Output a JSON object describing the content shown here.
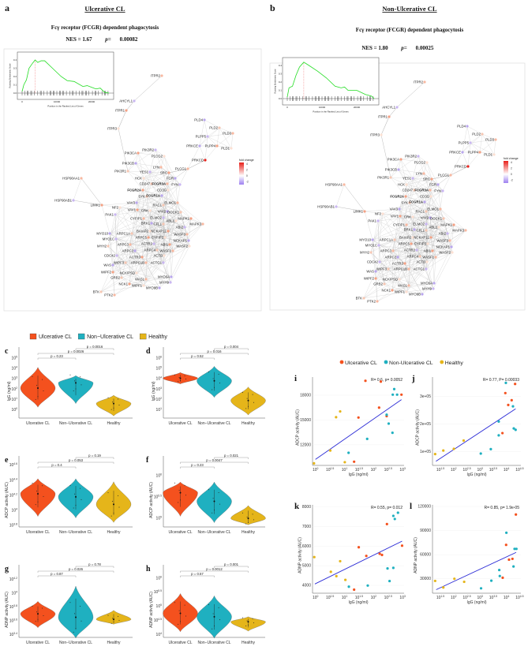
{
  "colors": {
    "ulcerative": "#f4511e",
    "non_ulcerative": "#1fb0c0",
    "healthy": "#e5b51a",
    "fit_line": "#2b2bd6",
    "gsea_curve": "#22dd22"
  },
  "panel_a": {
    "letter": "a",
    "group_title": "Ulcerative CL",
    "pathway": "Fcγ receptor (FCGR) dependent phagocytosis",
    "nes_label": "NES = 1.67",
    "p_label": "p=",
    "p_value": "0.00082"
  },
  "panel_b": {
    "letter": "b",
    "group_title": "Non-Ulcerative CL",
    "pathway": "Fcγ receptor (FCGR) dependent phagocytosis",
    "nes_label": "NES = 1.80",
    "p_label": "p=",
    "p_value": "0.00025"
  },
  "gsea_inset": {
    "ylabel": "Running Enrichment Score",
    "xlabel": "Position in the Ranked List of Genes",
    "yticks": [
      "0.0",
      "0.1",
      "0.2",
      "0.3",
      "0.4"
    ],
    "xticks": [
      "0",
      "10000",
      "20000"
    ]
  },
  "fold_change_legend": {
    "title": "fold change",
    "ticks": [
      "4",
      "2",
      "0",
      "-2"
    ]
  },
  "network_genes": [
    "ITPR2",
    "AHCYL1",
    "ITPR1",
    "ITPR3",
    "PLD4",
    "PLD2",
    "PLD3",
    "PLPP5",
    "PLPP4",
    "PLD1",
    "PRKCE",
    "PRKCD",
    "PLCG1",
    "PIK3R2",
    "PIK3CA",
    "PLCG2",
    "PIK3CB",
    "PIK3R1",
    "LYN",
    "YES1",
    "SRC",
    "HCK",
    "FGR",
    "CD247",
    "FCGR3A",
    "FYN",
    "FCGR2A",
    "CD3G",
    "FCGR1A",
    "SYK",
    "HSP90AA1",
    "HSP90AB1",
    "LIMK1",
    "NF2",
    "VAV3",
    "RAC1",
    "ELMO1",
    "PAK1",
    "VAV1",
    "CRK",
    "VAV2",
    "DOCK1",
    "CYFIP1",
    "ELMO2",
    "MAPK1",
    "ABL1",
    "BRK1",
    "CFL1",
    "MAPK3",
    "ABI2",
    "NCKAP1L",
    "BAIAP2",
    "MYO10",
    "ARPC1A",
    "WASF3",
    "MYO1C",
    "ARPC5",
    "CYFIP2",
    "NCKAP1",
    "MYH2",
    "ARPC3",
    "ACTR2",
    "ABI1",
    "WASF2",
    "ARPC2",
    "ARPC4",
    "WASF1",
    "CDC42",
    "ACTR3",
    "ACTB",
    "WAS",
    "WIPF3",
    "ARPC1B",
    "ACTG1",
    "WIPF2",
    "NCKIPSD",
    "MYO5A",
    "GRB2",
    "WASL",
    "MYH9",
    "NCK1",
    "WIPF1",
    "MYO9B",
    "BTK",
    "PTK2"
  ],
  "violin_legend": [
    "Ulcerative CL",
    "Non−Ulcerative CL",
    "Healthy"
  ],
  "scatter_legend": [
    "Ulcerative CL",
    "Non-Ulcerative CL",
    "Healthy"
  ],
  "chart_data": [
    {
      "panel": "c",
      "type": "violin",
      "ylabel": "IgG (ng/ml)",
      "yscale": "log10",
      "yticks": [
        0,
        1,
        2,
        3,
        4,
        5
      ],
      "ylim": [
        -0.8,
        5.6
      ],
      "categories": [
        "Ulcerative CL",
        "Non−Ulcerative CL",
        "Healthy"
      ],
      "groups": [
        {
          "median": 2.1,
          "min": 0.25,
          "max": 4.1
        },
        {
          "median": 2.6,
          "min": 0.6,
          "max": 3.3
        },
        {
          "median": 0.6,
          "min": -0.6,
          "max": 1.4
        }
      ],
      "comparisons": [
        {
          "pair": [
            0,
            1
          ],
          "label": "p = 0.23"
        },
        {
          "pair": [
            0,
            2
          ],
          "label": "p = 0.0026"
        },
        {
          "pair": [
            1,
            2
          ],
          "label": "p = 0.0016"
        }
      ]
    },
    {
      "panel": "d",
      "type": "violin",
      "ylabel": "IgG (ng/ml)",
      "yscale": "log10",
      "yticks": [
        1,
        2,
        3,
        4,
        5,
        6
      ],
      "ylim": [
        0.2,
        6.6
      ],
      "categories": [
        "Ulcerative CL",
        "Non−Ulcerative CL",
        "Healthy"
      ],
      "groups": [
        {
          "median": 4.05,
          "min": 3.5,
          "max": 4.6
        },
        {
          "median": 3.8,
          "min": 2.2,
          "max": 5.2
        },
        {
          "median": 1.9,
          "min": 0.5,
          "max": 3.2
        }
      ],
      "comparisons": [
        {
          "pair": [
            0,
            1
          ],
          "label": "p = 0.52"
        },
        {
          "pair": [
            0,
            2
          ],
          "label": "p = 0.016"
        },
        {
          "pair": [
            1,
            2
          ],
          "label": "p = 0.004"
        }
      ]
    },
    {
      "panel": "e",
      "type": "violin",
      "ylabel": "ADCP activity (AUC)",
      "yscale": "log10",
      "yticks": [
        3.8,
        4.0,
        4.2,
        4.4,
        4.6
      ],
      "ylim": [
        3.78,
        4.66
      ],
      "categories": [
        "Ulcerative CL",
        "Non−Ulcerative CL",
        "Healthy"
      ],
      "groups": [
        {
          "median": 4.22,
          "min": 3.92,
          "max": 4.42
        },
        {
          "median": 4.18,
          "min": 3.9,
          "max": 4.42
        },
        {
          "median": 4.08,
          "min": 3.84,
          "max": 4.38
        }
      ],
      "comparisons": [
        {
          "pair": [
            0,
            1
          ],
          "label": "p = 0.4"
        },
        {
          "pair": [
            0,
            2
          ],
          "label": "p = 0.053"
        },
        {
          "pair": [
            1,
            2
          ],
          "label": "p = 0.19"
        }
      ]
    },
    {
      "panel": "f",
      "type": "violin",
      "ylabel": "ADCP activity (AUC)",
      "yscale": "log10",
      "yticks": [
        5.0,
        5.5,
        6.0
      ],
      "ylim": [
        4.8,
        6.35
      ],
      "categories": [
        "Ulcerative CL",
        "Non−Ulcerative CL",
        "Healthy"
      ],
      "groups": [
        {
          "median": 5.6,
          "min": 5.05,
          "max": 5.85
        },
        {
          "median": 5.4,
          "min": 4.9,
          "max": 5.85
        },
        {
          "median": 5.0,
          "min": 4.85,
          "max": 5.3
        }
      ],
      "comparisons": [
        {
          "pair": [
            0,
            1
          ],
          "label": "p = 0.23"
        },
        {
          "pair": [
            0,
            2
          ],
          "label": "p = 0.0047"
        },
        {
          "pair": [
            1,
            2
          ],
          "label": "p = 0.021"
        }
      ]
    },
    {
      "panel": "g",
      "type": "violin",
      "ylabel": "ADNP activity (AUC)",
      "yscale": "log10",
      "yticks": [
        3.4,
        3.6,
        3.8,
        4.0,
        4.2
      ],
      "ylim": [
        3.36,
        4.34
      ],
      "categories": [
        "Ulcerative CL",
        "Non−Ulcerative CL",
        "Healthy"
      ],
      "groups": [
        {
          "median": 3.7,
          "min": 3.5,
          "max": 3.88
        },
        {
          "median": 3.65,
          "min": 3.35,
          "max": 4.1
        },
        {
          "median": 3.62,
          "min": 3.55,
          "max": 3.75
        }
      ],
      "comparisons": [
        {
          "pair": [
            0,
            1
          ],
          "label": "p = 0.87"
        },
        {
          "pair": [
            0,
            2
          ],
          "label": "p = 0.026"
        },
        {
          "pair": [
            1,
            2
          ],
          "label": "p = 0.78"
        }
      ]
    },
    {
      "panel": "h",
      "type": "violin",
      "ylabel": "ADNP activity (AUC)",
      "yscale": "log10",
      "yticks": [
        4.0,
        4.5,
        5.0,
        5.5,
        6.0
      ],
      "ylim": [
        3.9,
        6.3
      ],
      "categories": [
        "Ulcerative CL",
        "Non−Ulcerative CL",
        "Healthy"
      ],
      "groups": [
        {
          "median": 4.75,
          "min": 4.1,
          "max": 5.45
        },
        {
          "median": 4.63,
          "min": 3.87,
          "max": 5.37
        },
        {
          "median": 4.45,
          "min": 4.12,
          "max": 4.63
        }
      ],
      "comparisons": [
        {
          "pair": [
            0,
            1
          ],
          "label": "p = 0.57"
        },
        {
          "pair": [
            0,
            2
          ],
          "label": "p = 0.0012"
        },
        {
          "pair": [
            1,
            2
          ],
          "label": "p = 0.001"
        }
      ]
    },
    {
      "panel": "i",
      "type": "scatter",
      "xlabel": "IgG (ng/ml)",
      "ylabel": "ADCP activity (AUC)",
      "xscale": "log10",
      "xticks": [
        0,
        0.5,
        1,
        1.5,
        2,
        2.5,
        3
      ],
      "xlim": [
        -0.1,
        3.05
      ],
      "yticks": [
        12000,
        15000,
        18000
      ],
      "ytick_labels": [
        "12000",
        "15000",
        "18000"
      ],
      "ylim": [
        9500,
        20200
      ],
      "stat": "R= 0.6, p= 0.0052",
      "fit": [
        [
          0,
          10230
        ],
        [
          2.96,
          17470
        ]
      ],
      "series": [
        {
          "name": "Ulcerative CL",
          "points": [
            [
              1.72,
              19750
            ],
            [
              2.25,
              19650
            ],
            [
              2.96,
              18070
            ],
            [
              2.19,
              16500
            ],
            [
              1.48,
              15300
            ],
            [
              2.45,
              15470
            ],
            [
              1.33,
              9950
            ]
          ]
        },
        {
          "name": "Non-Ulcerative CL",
          "points": [
            [
              2.71,
              18740
            ],
            [
              2.66,
              18070
            ],
            [
              2.81,
              18070
            ],
            [
              2.45,
              15640
            ],
            [
              2.52,
              14560
            ],
            [
              2.65,
              13450
            ],
            [
              1.78,
              12710
            ],
            [
              1.14,
              11030
            ]
          ]
        },
        {
          "name": "Healthy",
          "points": [
            [
              0.85,
              16040
            ],
            [
              0.71,
              15340
            ],
            [
              -0.05,
              9750
            ],
            [
              0.51,
              11300
            ],
            [
              1.01,
              9890
            ]
          ]
        }
      ]
    },
    {
      "panel": "j",
      "type": "scatter",
      "xlabel": "IgG (ng/ml)",
      "ylabel": "ADCP activity (AUC)",
      "xscale": "log10",
      "xticks": [
        1.5,
        2,
        2.5,
        3,
        3.5,
        4,
        4.5
      ],
      "xlim": [
        1.2,
        4.55
      ],
      "yticks": [
        100000,
        200000,
        300000
      ],
      "ytick_labels": [
        "1e+05",
        "2e+05",
        "3e+05"
      ],
      "ylim": [
        50000,
        370000
      ],
      "stat": "R= 0.77, P= 0.00033",
      "fit": [
        [
          1.33,
          65000
        ],
        [
          4.35,
          255000
        ]
      ],
      "series": [
        {
          "name": "Ulcerative CL",
          "points": [
            [
              3.96,
              312000
            ],
            [
              4.07,
              269000
            ],
            [
              4.2,
              286000
            ],
            [
              3.85,
              167000
            ],
            [
              4.33,
              345000
            ]
          ]
        },
        {
          "name": "Non-Ulcerative CL",
          "points": [
            [
              3.03,
              93000
            ],
            [
              3.41,
              109000
            ],
            [
              3.71,
              159000
            ],
            [
              3.71,
              209000
            ],
            [
              3.98,
              349000
            ],
            [
              4.25,
              264000
            ],
            [
              4.28,
              184000
            ],
            [
              4.35,
              179000
            ]
          ]
        },
        {
          "name": "Healthy",
          "points": [
            [
              1.3,
              91000
            ],
            [
              1.61,
              104000
            ],
            [
              2.01,
              110000
            ],
            [
              2.38,
              140000
            ]
          ]
        }
      ]
    },
    {
      "panel": "k",
      "type": "scatter",
      "xlabel": "IgG (ng/ml)",
      "ylabel": "ADNP activity (AUC)",
      "xscale": "log10",
      "xticks": [
        0,
        0.5,
        1,
        1.5,
        2,
        2.5,
        3
      ],
      "xlim": [
        -0.1,
        3.05
      ],
      "yticks": [
        4000,
        5000,
        6000,
        7000,
        8000
      ],
      "ytick_labels": [
        "4000",
        "5000",
        "6000",
        "7000",
        "8000"
      ],
      "ylim": [
        3600,
        8100
      ],
      "stat": "R= 0.55, p= 0.012",
      "fit": [
        [
          -0.02,
          4070
        ],
        [
          2.98,
          6250
        ]
      ],
      "series": [
        {
          "name": "Ulcerative CL",
          "points": [
            [
              1.33,
              3780
            ],
            [
              1.49,
              5940
            ],
            [
              1.75,
              5500
            ],
            [
              2.21,
              5610
            ],
            [
              2.29,
              5550
            ],
            [
              2.46,
              7120
            ],
            [
              2.98,
              6020
            ]
          ]
        },
        {
          "name": "Non-Ulcerative CL",
          "points": [
            [
              1.15,
              3930
            ],
            [
              1.8,
              3990
            ],
            [
              2.48,
              4860
            ],
            [
              2.55,
              4220
            ],
            [
              2.68,
              4890
            ],
            [
              2.68,
              7540
            ],
            [
              2.73,
              7380
            ],
            [
              2.84,
              7700
            ]
          ]
        },
        {
          "name": "Healthy",
          "points": [
            [
              -0.04,
              5440
            ],
            [
              0.53,
              4690
            ],
            [
              0.72,
              4470
            ],
            [
              0.85,
              5230
            ],
            [
              1.03,
              4280
            ]
          ]
        }
      ]
    },
    {
      "panel": "l",
      "type": "scatter",
      "xlabel": "IgG (ng/ml)",
      "ylabel": "ADNP activity (AUC)",
      "xscale": "log10",
      "xticks": [
        1.5,
        2,
        2.5,
        3,
        3.5,
        4,
        4.5
      ],
      "xlim": [
        1.2,
        4.55
      ],
      "yticks": [
        30000,
        60000,
        90000,
        120000
      ],
      "ytick_labels": [
        "30000",
        "60000",
        "90000",
        "120000"
      ],
      "ylim": [
        12000,
        122000
      ],
      "stat": "R= 0.85, p= 1.9e-05",
      "fit": [
        [
          1.34,
          16400
        ],
        [
          4.37,
          62800
        ]
      ],
      "series": [
        {
          "name": "Ulcerative CL",
          "points": [
            [
              3.86,
              31300
            ],
            [
              3.99,
              72200
            ],
            [
              4.1,
              53800
            ],
            [
              4.23,
              54800
            ],
            [
              4.36,
              110000
            ]
          ]
        },
        {
          "name": "Non-Ulcerative CL",
          "points": [
            [
              3.04,
              18100
            ],
            [
              3.43,
              27600
            ],
            [
              3.75,
              33400
            ],
            [
              3.73,
              40900
            ],
            [
              4.0,
              87300
            ],
            [
              4.27,
              45300
            ],
            [
              4.31,
              67200
            ],
            [
              4.38,
              67200
            ]
          ]
        },
        {
          "name": "Healthy",
          "points": [
            [
              1.3,
              27300
            ],
            [
              1.61,
              19100
            ],
            [
              2.03,
              30000
            ],
            [
              2.4,
              26200
            ]
          ]
        }
      ]
    }
  ]
}
